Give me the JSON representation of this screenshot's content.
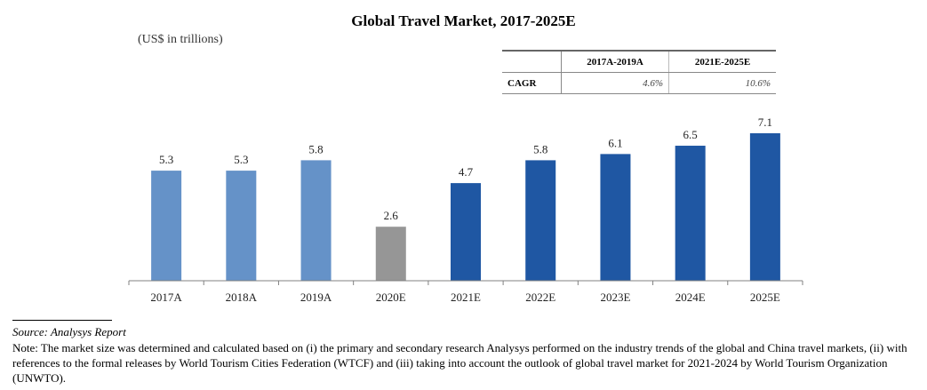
{
  "chart_data": {
    "type": "bar",
    "title": "Global Travel Market, 2017-2025E",
    "unit_label": "(US$ in trillions)",
    "categories": [
      "2017A",
      "2018A",
      "2019A",
      "2020E",
      "2021E",
      "2022E",
      "2023E",
      "2024E",
      "2025E"
    ],
    "values": [
      5.3,
      5.3,
      5.8,
      2.6,
      4.7,
      5.8,
      6.1,
      6.5,
      7.1
    ],
    "value_labels": [
      "5.3",
      "5.3",
      "5.8",
      "2.6",
      "4.7",
      "5.8",
      "6.1",
      "6.5",
      "7.1"
    ],
    "bar_colors": [
      "#6592c8",
      "#6592c8",
      "#6592c8",
      "#969696",
      "#1f57a3",
      "#1f57a3",
      "#1f57a3",
      "#1f57a3",
      "#1f57a3"
    ],
    "ylim": [
      0,
      7.1
    ],
    "grid": false,
    "cagr_table": {
      "headers": [
        "",
        "2017A-2019A",
        "2021E-2025E"
      ],
      "rows": [
        {
          "label": "CAGR",
          "values": [
            "4.6%",
            "10.6%"
          ]
        }
      ]
    }
  },
  "footer": {
    "source": "Source: Analysys Report",
    "note": "Note: The market size was determined and calculated based on (i) the primary and secondary research Analysys performed on the industry trends of the global and China travel markets, (ii) with references to the formal releases by World Tourism Cities Federation (WTCF) and (iii) taking into account the outlook of global travel market for 2021-2024 by World Tourism Organization (UNWTO)."
  }
}
